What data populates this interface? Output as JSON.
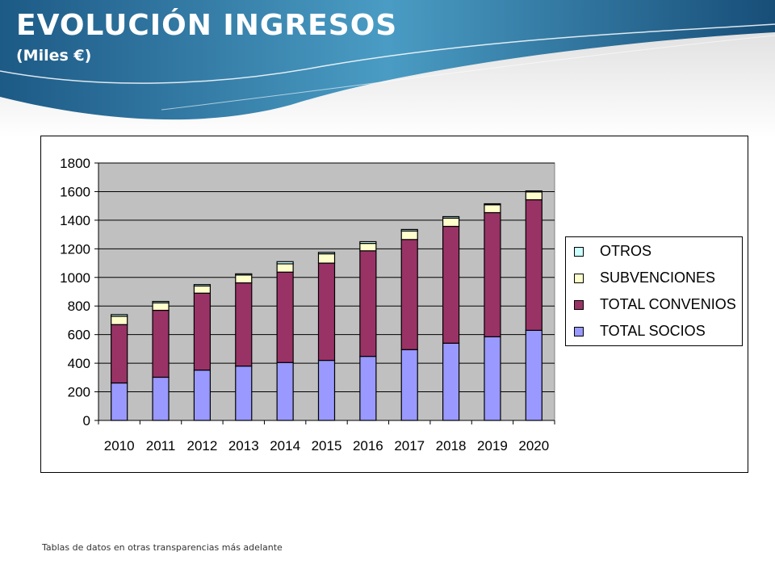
{
  "header": {
    "title": "EVOLUCIÓN INGRESOS",
    "subtitle": "(Miles €)"
  },
  "footnote": "Tablas de datos en otras transparencias más adelante",
  "colors": {
    "header_dark": "#1d5a86",
    "header_light": "#4a9cc4",
    "plot_background": "#c0c0c0",
    "socios": "#9999ff",
    "convenios": "#993366",
    "subvenciones": "#ffffcc",
    "otros": "#ccffff"
  },
  "chart_data": {
    "type": "bar",
    "stacked": true,
    "categories": [
      "2010",
      "2011",
      "2012",
      "2013",
      "2014",
      "2015",
      "2016",
      "2017",
      "2018",
      "2019",
      "2020"
    ],
    "ylim": [
      0,
      1800
    ],
    "yticks": [
      0,
      200,
      400,
      600,
      800,
      1000,
      1200,
      1400,
      1600,
      1800
    ],
    "grid": true,
    "legend_position": "right",
    "series": [
      {
        "name": "TOTAL SOCIOS",
        "color": "#9999ff",
        "values": [
          262,
          302,
          352,
          380,
          405,
          420,
          448,
          495,
          540,
          585,
          630
        ]
      },
      {
        "name": "TOTAL CONVENIOS",
        "color": "#993366",
        "values": [
          408,
          468,
          538,
          582,
          632,
          680,
          738,
          770,
          817,
          868,
          913
        ]
      },
      {
        "name": "SUBVENCIONES",
        "color": "#ffffcc",
        "values": [
          58,
          52,
          50,
          55,
          58,
          65,
          52,
          60,
          58,
          55,
          55
        ]
      },
      {
        "name": "OTROS",
        "color": "#ccffff",
        "values": [
          12,
          10,
          10,
          8,
          15,
          10,
          12,
          10,
          10,
          7,
          7
        ]
      }
    ]
  }
}
